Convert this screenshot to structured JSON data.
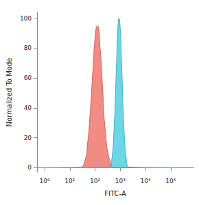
{
  "chart_data": {
    "type": "area",
    "xlabel": "FITC-A",
    "ylabel": "Normalized To Mode",
    "log": "x",
    "xlim": [
      0.5,
      800000
    ],
    "xticks": [
      {
        "value": 1,
        "label": "10⁰"
      },
      {
        "value": 10,
        "label": "10¹"
      },
      {
        "value": 100,
        "label": "10²"
      },
      {
        "value": 1000,
        "label": "10³"
      },
      {
        "value": 10000,
        "label": "10⁴"
      },
      {
        "value": 100000,
        "label": "10⁵"
      }
    ],
    "ylim": [
      -3,
      104
    ],
    "yticks": [
      0,
      20,
      40,
      60,
      80,
      100
    ],
    "grid": false,
    "series": [
      {
        "color": "#f0776f",
        "x": [
          1,
          25,
          40,
          50,
          63,
          80,
          100,
          112,
          125,
          160,
          200,
          250,
          400,
          630,
          100000
        ],
        "values": [
          0,
          0.3,
          5.3,
          15.7,
          35.6,
          63,
          88,
          94,
          95,
          79,
          52,
          26,
          3.2,
          0,
          0
        ]
      },
      {
        "color": "#52cfe3",
        "x": [
          1,
          355,
          450,
          560,
          710,
          790,
          890,
          1000,
          1120,
          1410,
          1780,
          2240,
          100000
        ],
        "values": [
          0,
          0.4,
          4.4,
          25,
          71,
          92,
          100,
          92,
          71,
          25,
          4.4,
          0.4,
          0
        ]
      }
    ]
  }
}
